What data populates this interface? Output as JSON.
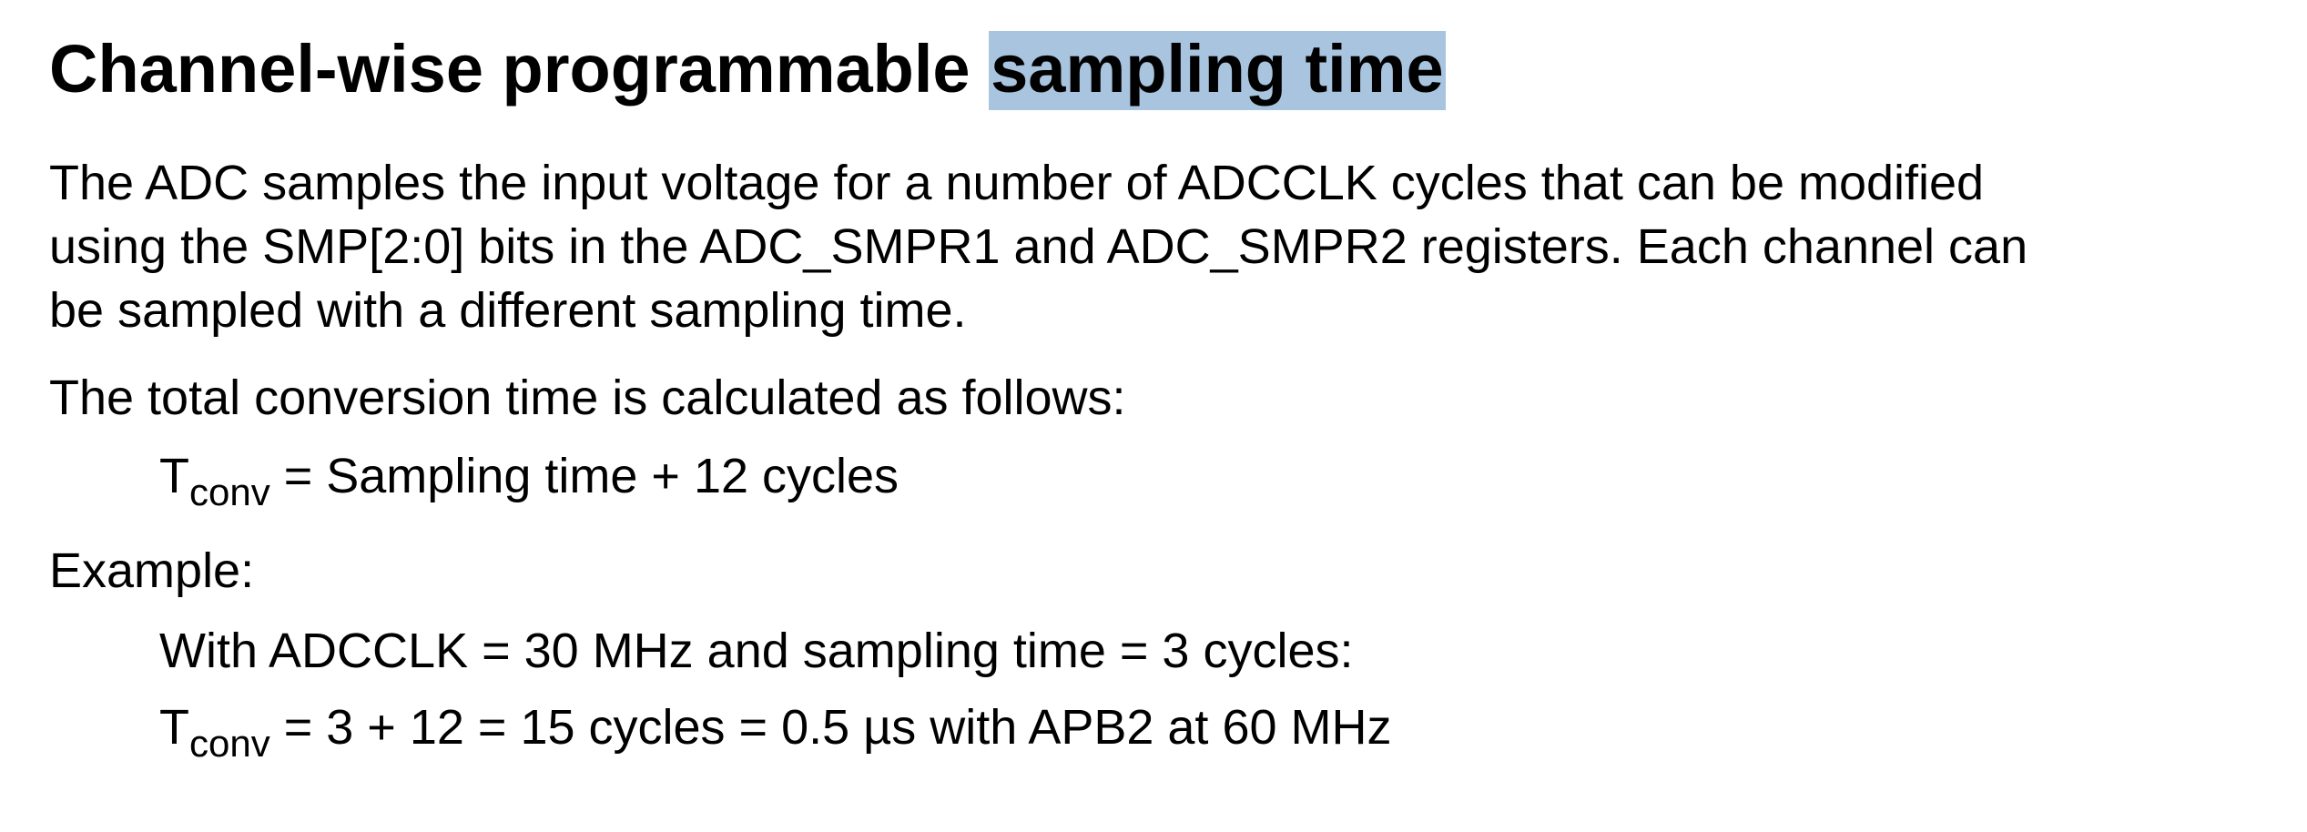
{
  "heading": {
    "plain": "Channel-wise programmable ",
    "highlighted": "sampling time"
  },
  "paragraph1": {
    "line1": "The ADC samples the input voltage for a number of ADCCLK cycles that can be modified",
    "line2": "using the SMP[2:0] bits in the ADC_SMPR1 and ADC_SMPR2 registers. Each channel can",
    "line3": "be sampled with a different sampling time."
  },
  "paragraph2": "The total conversion time is calculated as follows:",
  "formula": {
    "base": "T",
    "subscript": "conv",
    "rest": " = Sampling time + 12 cycles"
  },
  "example_label": "Example:",
  "example": {
    "line1": "With ADCCLK = 30 MHz and sampling time = 3 cycles:",
    "line2_base": "T",
    "line2_subscript": "conv",
    "line2_rest": " = 3 + 12 = 15 cycles = 0.5 µs with APB2 at 60 MHz"
  },
  "colors": {
    "highlight": "#a8c4de",
    "text": "#000000",
    "background": "#ffffff"
  }
}
